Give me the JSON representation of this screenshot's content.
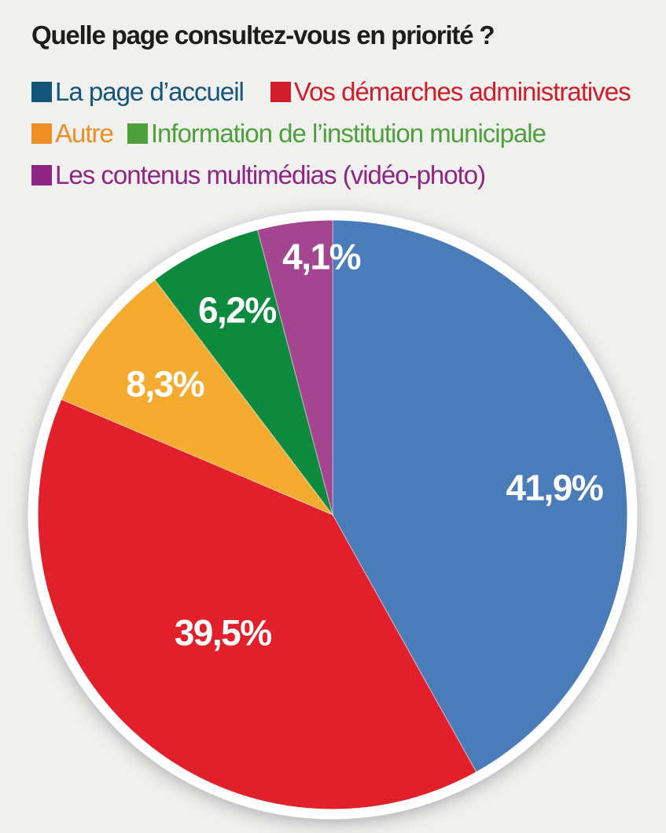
{
  "page": {
    "background_color": "#f0f0ee",
    "title_color": "#1d1d1b"
  },
  "chart_data": {
    "type": "pie",
    "title": "Quelle page consultez-vous en priorité ?",
    "start_angle_deg": 0,
    "direction": "clockwise",
    "total_pct": 100.0,
    "label_color": "#ffffff",
    "ring_color": "#ffffff",
    "slices": [
      {
        "label": "La page d’accueil",
        "value_pct": 41.9,
        "display_value": "41,9%",
        "color": "#4b7cba",
        "legend_color": "#15547b",
        "label_angle_deg": 83,
        "label_radius_frac": 0.755
      },
      {
        "label": "Vos démarches administratives",
        "value_pct": 39.5,
        "display_value": "39,5%",
        "color": "#e2202b",
        "legend_color": "#cf1d2c",
        "label_angle_deg": 223,
        "label_radius_frac": 0.545
      },
      {
        "label": "Autre",
        "value_pct": 8.3,
        "display_value": "8,3%",
        "color": "#f4ab30",
        "legend_color": "#ee8f25",
        "label_angle_deg": 308,
        "label_radius_frac": 0.72
      },
      {
        "label": "Information de l’institution municipale",
        "value_pct": 6.2,
        "display_value": "6,2%",
        "color": "#0e8a3e",
        "legend_color": "#4fa03c",
        "label_angle_deg": 335,
        "label_radius_frac": 0.765
      },
      {
        "label": "Les contenus multimédias (vidéo-photo)",
        "value_pct": 4.1,
        "display_value": "4,1%",
        "color": "#a4468f",
        "legend_color": "#8e2585",
        "label_angle_deg": 357.5,
        "label_radius_frac": 0.875
      }
    ]
  },
  "legend": {
    "position": "top-left",
    "rows": [
      [
        0,
        1
      ],
      [
        2,
        3
      ],
      [
        4
      ]
    ]
  }
}
